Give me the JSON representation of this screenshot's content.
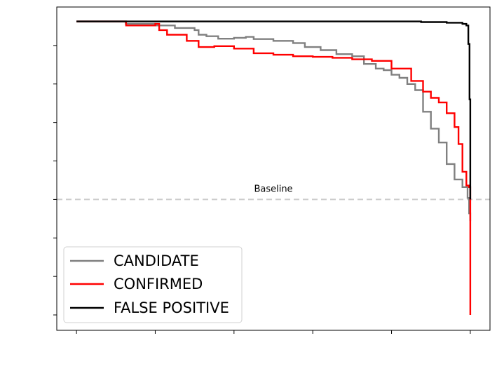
{
  "chart_data": {
    "type": "line",
    "title": "",
    "xlabel": "",
    "ylabel": "",
    "xlim": [
      -0.05,
      1.05
    ],
    "ylim": [
      -0.05,
      1.0
    ],
    "x_ticks": [
      0.0,
      0.2,
      0.4,
      0.6,
      0.8,
      1.0
    ],
    "y_ticks": [
      0.0,
      0.125,
      0.25,
      0.375,
      0.5,
      0.625,
      0.75,
      0.875
    ],
    "x_tick_labels_visible": false,
    "y_tick_labels_visible": false,
    "grid": false,
    "legend_position": "lower-left",
    "reference_line": {
      "y": 0.375,
      "label": "Baseline",
      "color": "#cccccc",
      "style": "dashed"
    },
    "series": [
      {
        "name": "CANDIDATE",
        "color": "#808080",
        "points": [
          [
            0.0,
            0.953
          ],
          [
            0.12,
            0.953
          ],
          [
            0.125,
            0.945
          ],
          [
            0.2,
            0.94
          ],
          [
            0.25,
            0.932
          ],
          [
            0.3,
            0.925
          ],
          [
            0.31,
            0.91
          ],
          [
            0.33,
            0.905
          ],
          [
            0.36,
            0.897
          ],
          [
            0.4,
            0.9
          ],
          [
            0.43,
            0.903
          ],
          [
            0.45,
            0.896
          ],
          [
            0.5,
            0.89
          ],
          [
            0.55,
            0.883
          ],
          [
            0.58,
            0.87
          ],
          [
            0.62,
            0.86
          ],
          [
            0.66,
            0.847
          ],
          [
            0.7,
            0.84
          ],
          [
            0.73,
            0.815
          ],
          [
            0.76,
            0.8
          ],
          [
            0.78,
            0.795
          ],
          [
            0.8,
            0.78
          ],
          [
            0.82,
            0.77
          ],
          [
            0.84,
            0.75
          ],
          [
            0.86,
            0.73
          ],
          [
            0.88,
            0.66
          ],
          [
            0.9,
            0.605
          ],
          [
            0.92,
            0.56
          ],
          [
            0.94,
            0.49
          ],
          [
            0.96,
            0.44
          ],
          [
            0.98,
            0.415
          ],
          [
            0.993,
            0.38
          ],
          [
            0.997,
            0.33
          ],
          [
            1.0,
            0.305
          ]
        ]
      },
      {
        "name": "CONFIRMED",
        "color": "#ff0000",
        "points": [
          [
            0.0,
            0.953
          ],
          [
            0.125,
            0.953
          ],
          [
            0.126,
            0.94
          ],
          [
            0.2,
            0.945
          ],
          [
            0.21,
            0.925
          ],
          [
            0.23,
            0.91
          ],
          [
            0.28,
            0.89
          ],
          [
            0.31,
            0.87
          ],
          [
            0.35,
            0.873
          ],
          [
            0.4,
            0.865
          ],
          [
            0.45,
            0.85
          ],
          [
            0.5,
            0.845
          ],
          [
            0.55,
            0.84
          ],
          [
            0.6,
            0.838
          ],
          [
            0.65,
            0.835
          ],
          [
            0.7,
            0.83
          ],
          [
            0.75,
            0.825
          ],
          [
            0.8,
            0.8
          ],
          [
            0.85,
            0.76
          ],
          [
            0.88,
            0.725
          ],
          [
            0.9,
            0.705
          ],
          [
            0.92,
            0.69
          ],
          [
            0.94,
            0.655
          ],
          [
            0.96,
            0.61
          ],
          [
            0.97,
            0.555
          ],
          [
            0.98,
            0.465
          ],
          [
            0.99,
            0.42
          ],
          [
            0.997,
            0.415
          ],
          [
            1.0,
            0.0
          ]
        ]
      },
      {
        "name": "FALSE POSITIVE",
        "color": "#000000",
        "points": [
          [
            0.0,
            0.953
          ],
          [
            0.78,
            0.953
          ],
          [
            0.875,
            0.951
          ],
          [
            0.94,
            0.949
          ],
          [
            0.98,
            0.945
          ],
          [
            0.99,
            0.94
          ],
          [
            0.995,
            0.88
          ],
          [
            0.998,
            0.7
          ],
          [
            1.0,
            0.42
          ],
          [
            1.0,
            0.375
          ]
        ]
      }
    ]
  }
}
